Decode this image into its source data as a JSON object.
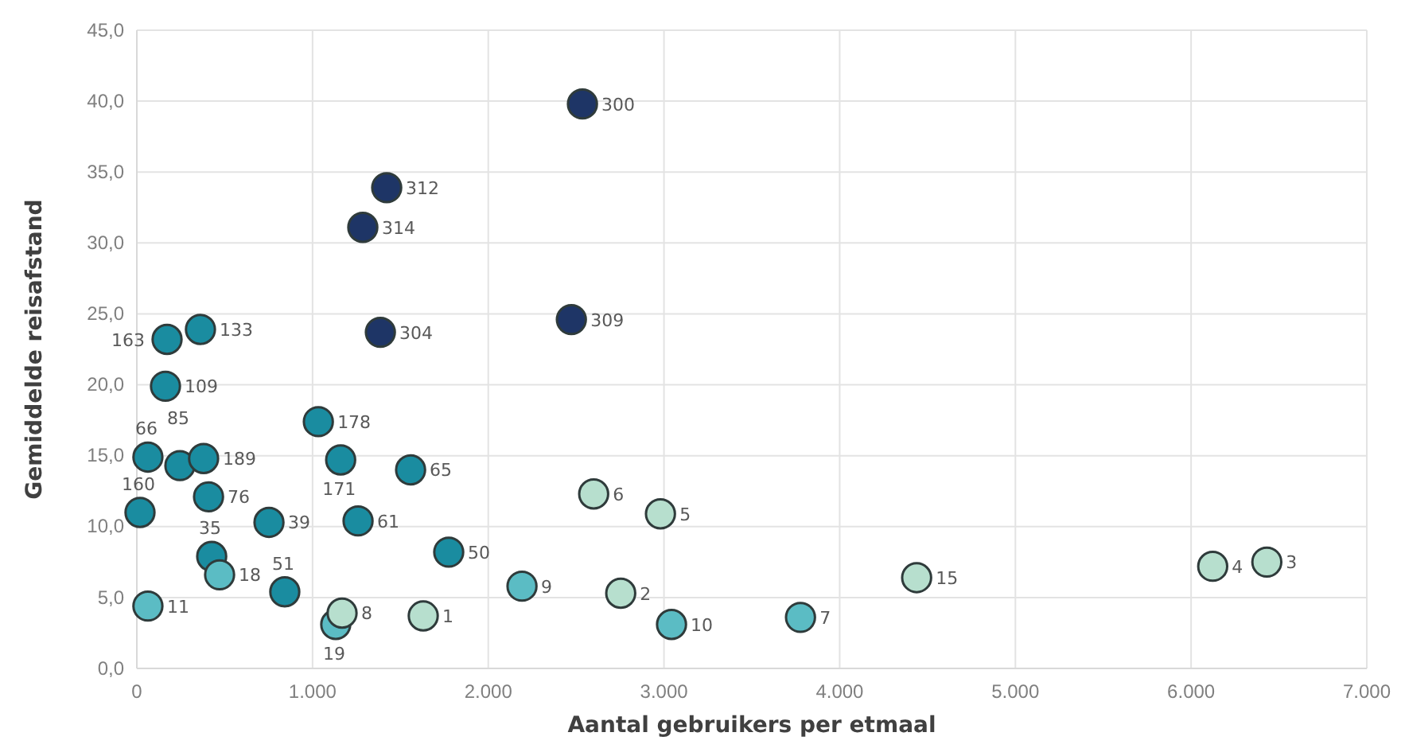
{
  "chart_data": {
    "type": "scatter",
    "xlabel": "Aantal gebruikers per etmaal",
    "ylabel": "Gemiddelde reisafstand",
    "xlim": [
      0,
      7000
    ],
    "ylim": [
      0,
      45
    ],
    "xticks": [
      {
        "value": 0,
        "label": "0"
      },
      {
        "value": 1000,
        "label": "1.000"
      },
      {
        "value": 2000,
        "label": "2.000"
      },
      {
        "value": 3000,
        "label": "3.000"
      },
      {
        "value": 4000,
        "label": "4.000"
      },
      {
        "value": 5000,
        "label": "5.000"
      },
      {
        "value": 6000,
        "label": "6.000"
      },
      {
        "value": 7000,
        "label": "7.000"
      }
    ],
    "yticks": [
      {
        "value": 0,
        "label": "0,0"
      },
      {
        "value": 5,
        "label": "5,0"
      },
      {
        "value": 10,
        "label": "10,0"
      },
      {
        "value": 15,
        "label": "15,0"
      },
      {
        "value": 20,
        "label": "20,0"
      },
      {
        "value": 25,
        "label": "25,0"
      },
      {
        "value": 30,
        "label": "30,0"
      },
      {
        "value": 35,
        "label": "35,0"
      },
      {
        "value": 40,
        "label": "40,0"
      },
      {
        "value": 45,
        "label": "45,0"
      }
    ],
    "grid": true,
    "marker": "circle",
    "series": [
      {
        "color": "#1e3566",
        "x": [
          2536,
          1422,
          1286,
          1386,
          2473
        ],
        "values": [
          39.8,
          33.9,
          31.1,
          23.7,
          24.6
        ]
      },
      {
        "color": "#1a8ca0",
        "x": [
          172,
          362,
          163,
          1033,
          63,
          245,
          380,
          1160,
          1558,
          408,
          18,
          752,
          1259,
          426,
          1775,
          842
        ],
        "values": [
          23.2,
          23.9,
          19.9,
          17.4,
          14.9,
          14.3,
          14.8,
          14.7,
          14.0,
          12.1,
          11.0,
          10.3,
          10.4,
          7.9,
          8.2,
          5.4
        ]
      },
      {
        "color": "#5bbcc4",
        "x": [
          471,
          63,
          1132,
          2192,
          3043,
          3777
        ],
        "values": [
          6.6,
          4.4,
          3.1,
          5.8,
          3.1,
          3.6
        ]
      },
      {
        "color": "#b7dfce",
        "x": [
          1168,
          1630,
          2754,
          2600,
          2980,
          4438,
          6123,
          6431
        ],
        "values": [
          3.9,
          3.7,
          5.3,
          12.3,
          10.9,
          6.4,
          7.2,
          7.5
        ]
      }
    ],
    "annotations": [
      {
        "text": "300",
        "x": 2536,
        "y": 39.8
      },
      {
        "text": "312",
        "x": 1422,
        "y": 33.9
      },
      {
        "text": "314",
        "x": 1286,
        "y": 31.1
      },
      {
        "text": "304",
        "x": 1386,
        "y": 23.7
      },
      {
        "text": "309",
        "x": 2473,
        "y": 24.6
      },
      {
        "text": "163",
        "x": 172,
        "y": 23.2
      },
      {
        "text": "133",
        "x": 362,
        "y": 23.9
      },
      {
        "text": "109",
        "x": 163,
        "y": 19.9
      },
      {
        "text": "178",
        "x": 1033,
        "y": 17.4
      },
      {
        "text": "66",
        "x": 63,
        "y": 14.9
      },
      {
        "text": "85",
        "x": 245,
        "y": 14.3
      },
      {
        "text": "189",
        "x": 380,
        "y": 14.8
      },
      {
        "text": "171",
        "x": 1160,
        "y": 14.7
      },
      {
        "text": "65",
        "x": 1558,
        "y": 14.0
      },
      {
        "text": "76",
        "x": 408,
        "y": 12.1
      },
      {
        "text": "160",
        "x": 18,
        "y": 11.0
      },
      {
        "text": "39",
        "x": 752,
        "y": 10.3
      },
      {
        "text": "61",
        "x": 1259,
        "y": 10.4
      },
      {
        "text": "35",
        "x": 426,
        "y": 7.9
      },
      {
        "text": "50",
        "x": 1775,
        "y": 8.2
      },
      {
        "text": "51",
        "x": 842,
        "y": 5.4
      },
      {
        "text": "18",
        "x": 471,
        "y": 6.6
      },
      {
        "text": "11",
        "x": 63,
        "y": 4.4
      },
      {
        "text": "19",
        "x": 1132,
        "y": 3.1
      },
      {
        "text": "9",
        "x": 2192,
        "y": 5.8
      },
      {
        "text": "10",
        "x": 3043,
        "y": 3.1
      },
      {
        "text": "7",
        "x": 3777,
        "y": 3.6
      },
      {
        "text": "8",
        "x": 1168,
        "y": 3.9
      },
      {
        "text": "1",
        "x": 1630,
        "y": 3.7
      },
      {
        "text": "2",
        "x": 2754,
        "y": 5.3
      },
      {
        "text": "6",
        "x": 2600,
        "y": 12.3
      },
      {
        "text": "5",
        "x": 2980,
        "y": 10.9
      },
      {
        "text": "15",
        "x": 4438,
        "y": 6.4
      },
      {
        "text": "4",
        "x": 6123,
        "y": 7.2
      },
      {
        "text": "3",
        "x": 6431,
        "y": 7.5
      }
    ]
  }
}
